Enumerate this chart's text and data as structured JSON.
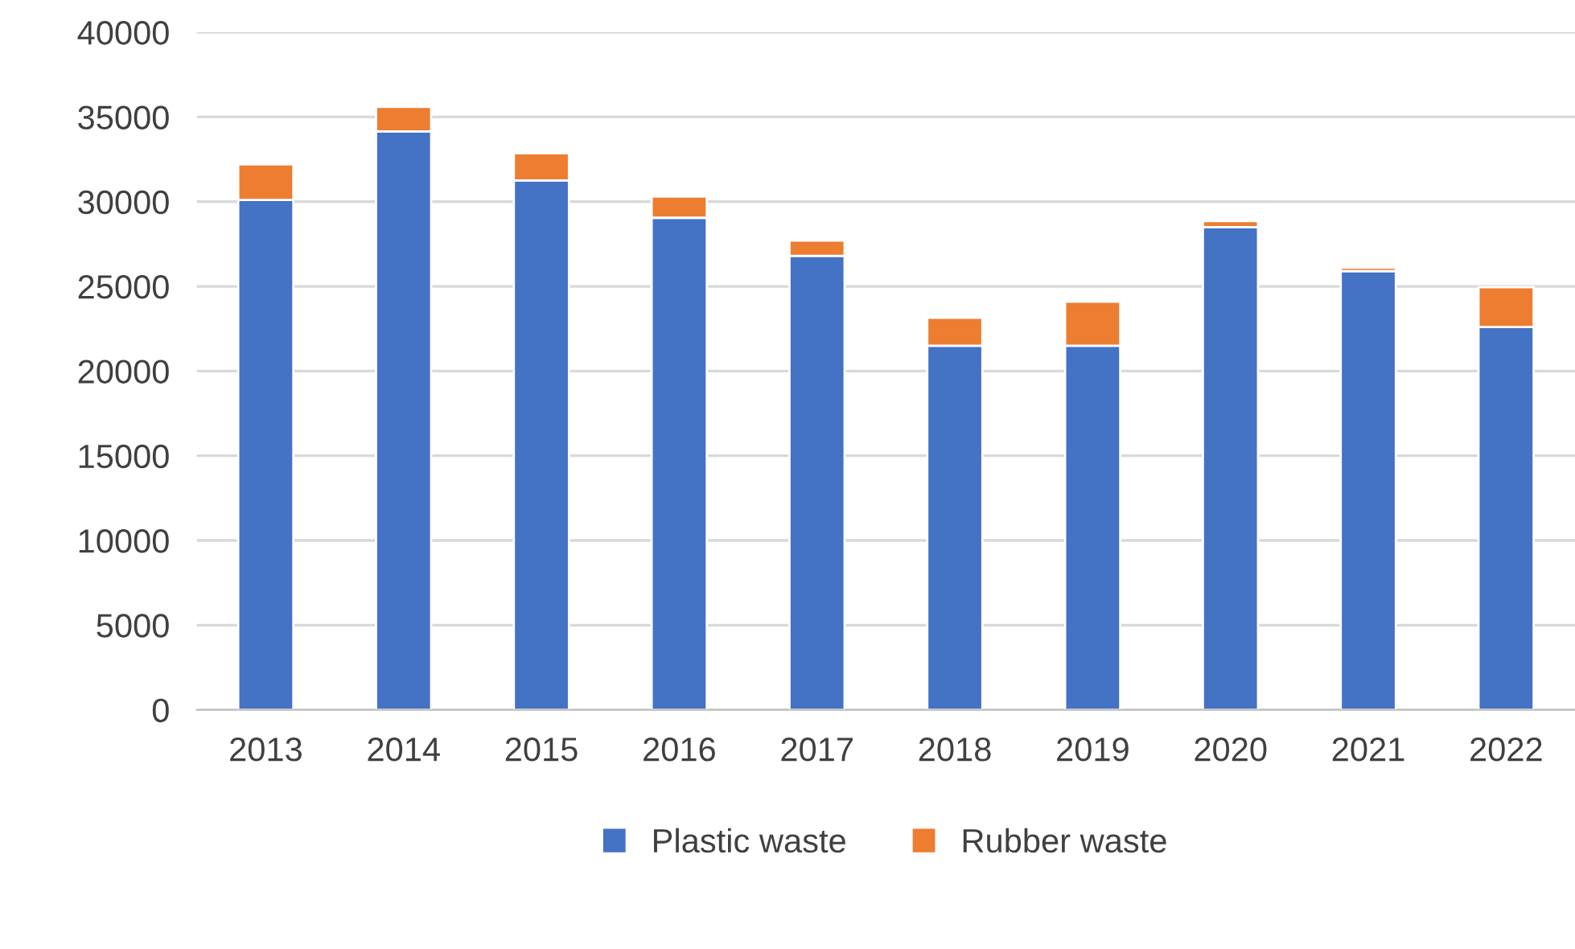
{
  "chart_data": {
    "type": "bar",
    "stacked": true,
    "categories": [
      "2013",
      "2014",
      "2015",
      "2016",
      "2017",
      "2018",
      "2019",
      "2020",
      "2021",
      "2022"
    ],
    "series": [
      {
        "name": "Plastic waste",
        "color": "#4472c4",
        "values": [
          30100,
          34150,
          31250,
          29050,
          26800,
          21500,
          21500,
          28500,
          25900,
          22600
        ]
      },
      {
        "name": "Rubber waste",
        "color": "#ed7d31",
        "values": [
          2100,
          1450,
          1600,
          1250,
          900,
          1650,
          2600,
          350,
          200,
          2350
        ]
      }
    ],
    "ylim": [
      0,
      40000
    ],
    "yticks": [
      0,
      5000,
      10000,
      15000,
      20000,
      25000,
      30000,
      35000,
      40000
    ],
    "grid": "y",
    "legend": "bottom"
  }
}
